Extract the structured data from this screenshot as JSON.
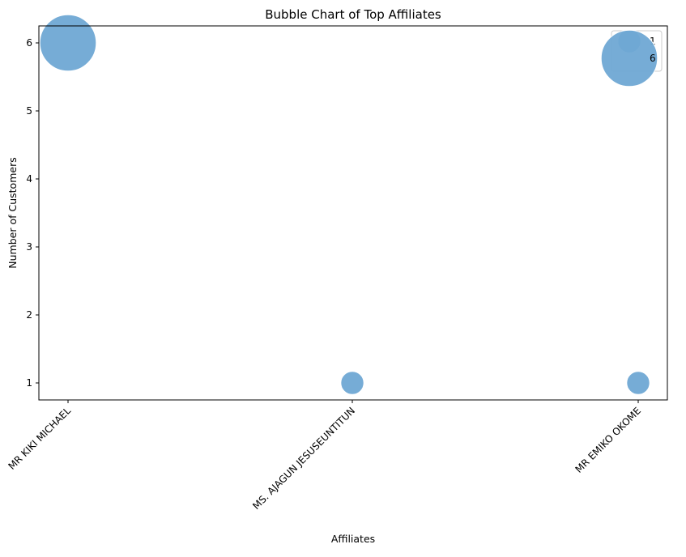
{
  "chart_data": {
    "type": "scatter",
    "title": "Bubble Chart of Top Affiliates",
    "xlabel": "Affiliates",
    "ylabel": "Number of Customers",
    "categories": [
      "MR KIKI MICHAEL",
      "MS. AJAGUN JESUSEUNTITUN",
      "MR EMIKO OKOME"
    ],
    "values": [
      6,
      1,
      1
    ],
    "sizes": [
      6,
      1,
      1
    ],
    "ylim": [
      0.75,
      6.25
    ],
    "yticks": [
      1,
      2,
      3,
      4,
      5,
      6
    ],
    "grid": false,
    "legend": {
      "placement": "upper right",
      "entries": [
        "1",
        "6"
      ]
    },
    "colors": {
      "bubble": "#6fa8d4",
      "axes": "#000000",
      "background": "#ffffff",
      "legend_border": "#cccccc"
    }
  }
}
